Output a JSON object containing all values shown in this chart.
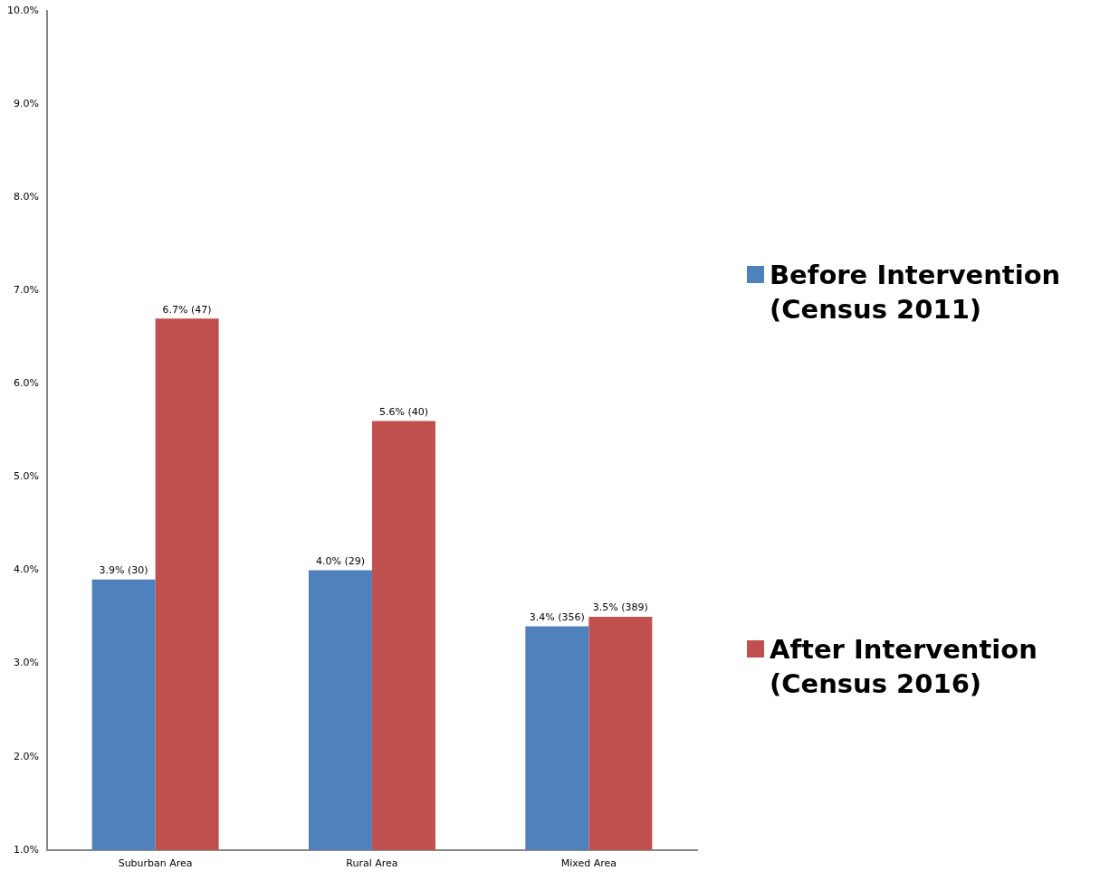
{
  "chart_data": {
    "type": "bar",
    "categories": [
      "Suburban Area",
      "Rural Area",
      "Mixed Area"
    ],
    "series": [
      {
        "name": "Before Intervention (Census 2011)",
        "color": "#4f81bd",
        "values": [
          3.9,
          4.0,
          3.4
        ],
        "value_labels": [
          "3.9% (30)",
          "4.0% (29)",
          "3.4% (356)"
        ]
      },
      {
        "name": "After Intervention (Census 2016)",
        "color": "#c0504d",
        "values": [
          6.7,
          5.6,
          3.5
        ],
        "value_labels": [
          "6.7% (47)",
          "5.6% (40)",
          "3.5% (389)"
        ]
      }
    ],
    "ylim": [
      1.0,
      10.0
    ],
    "yticks": [
      {
        "value": 1,
        "label": "1.0%"
      },
      {
        "value": 2,
        "label": "2.0%"
      },
      {
        "value": 3,
        "label": "3.0%"
      },
      {
        "value": 4,
        "label": "4.0%"
      },
      {
        "value": 5,
        "label": "5.0%"
      },
      {
        "value": 6,
        "label": "6.0%"
      },
      {
        "value": 7,
        "label": "7.0%"
      },
      {
        "value": 8,
        "label": "8.0%"
      },
      {
        "value": 9,
        "label": "9.0%"
      },
      {
        "value": 10,
        "label": "10.0%"
      }
    ],
    "grid": false,
    "legend": "right"
  }
}
